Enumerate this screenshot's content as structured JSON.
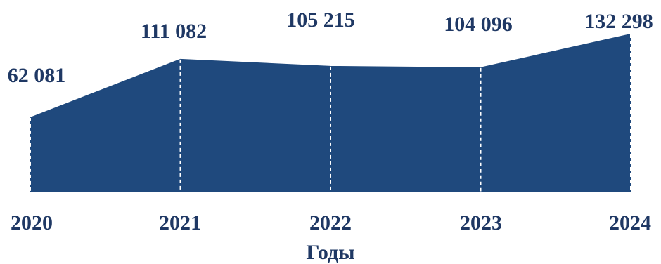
{
  "chart_data": {
    "type": "area",
    "categories": [
      "2020",
      "2021",
      "2022",
      "2023",
      "2024"
    ],
    "values": [
      62081,
      111082,
      105215,
      104096,
      132298
    ],
    "data_labels": [
      "62 081",
      "111 082",
      "105 215",
      "104 096",
      "132 298"
    ],
    "xlabel": "Годы",
    "ylabel": "",
    "ylim": [
      0,
      132298
    ],
    "grid": false,
    "legend": "none",
    "colors": {
      "fill": "#1f497d",
      "text": "#1f3864",
      "divider": "#ffffff",
      "axis": "#1f3864"
    }
  }
}
